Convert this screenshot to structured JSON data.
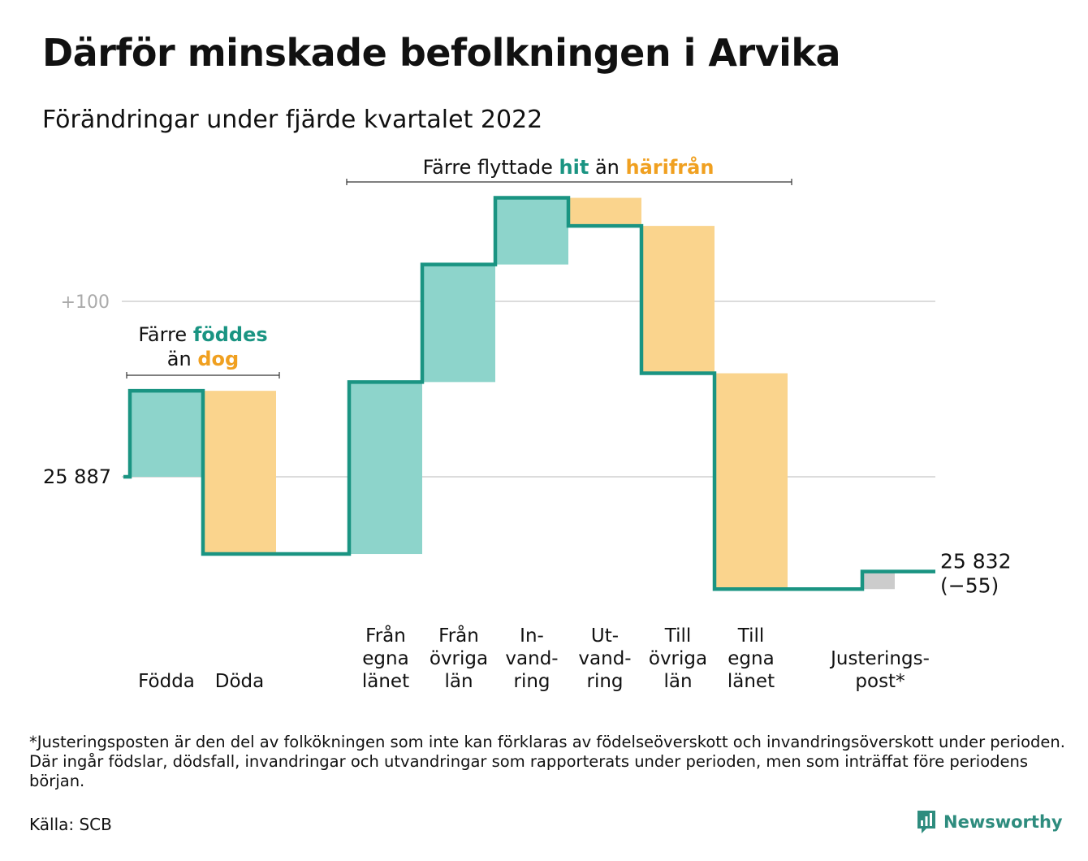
{
  "header": {
    "title": "Därför minskade befolkningen i Arvika",
    "subtitle": "Förändringar under fjärde kvartalet 2022"
  },
  "chart_data": {
    "type": "waterfall",
    "start_value": 25887,
    "start_label": "25 887",
    "gridline": {
      "offset": 100,
      "label": "+100"
    },
    "steps": [
      {
        "label": [
          "",
          "",
          "Födda"
        ],
        "change": 49,
        "kind": "in"
      },
      {
        "label": [
          "",
          "",
          "Döda"
        ],
        "change": -93,
        "kind": "out"
      },
      {
        "label": [
          "Från",
          "egna",
          "länet"
        ],
        "change": 98,
        "kind": "in"
      },
      {
        "label": [
          "Från",
          "övriga",
          "län"
        ],
        "change": 67,
        "kind": "in"
      },
      {
        "label": [
          "In-",
          "vand-",
          "ring"
        ],
        "change": 38,
        "kind": "in"
      },
      {
        "label": [
          "Ut-",
          "vand-",
          "ring"
        ],
        "change": -16,
        "kind": "out"
      },
      {
        "label": [
          "Till",
          "övriga",
          "län"
        ],
        "change": -84,
        "kind": "out"
      },
      {
        "label": [
          "Till",
          "egna",
          "länet"
        ],
        "change": -123,
        "kind": "out"
      },
      {
        "label": [
          "",
          "Justerings-",
          "post*"
        ],
        "change": 10,
        "kind": "adjust"
      }
    ],
    "end_value": 25832,
    "end_label": [
      "25 832",
      "(−55)"
    ],
    "annotations": {
      "births": {
        "line1": [
          "Färre ",
          "föddes"
        ],
        "line2": [
          "än ",
          "dog"
        ]
      },
      "moves": [
        "Färre flyttade ",
        "hit",
        " än ",
        "härifrån"
      ]
    },
    "colors": {
      "line": "#1a9482",
      "in": "#8dd4cb",
      "out": "#fad48d",
      "adjust": "#cccccc",
      "grid": "#dcdcdc",
      "label_in": "#1a9482",
      "label_out": "#f0a020"
    }
  },
  "footer": {
    "footnote": "*Justeringsposten är den del av folkökningen som inte kan förklaras av födelseöverskott och invandringsöverskott under perioden. Där ingår födslar, dödsfall, invandringar och utvandringar som rapporterats under perioden, men som inträffat före periodens början.",
    "source": "Källa: SCB",
    "brand": "Newsworthy",
    "brand_icon": "bar-chart-speech-icon"
  }
}
